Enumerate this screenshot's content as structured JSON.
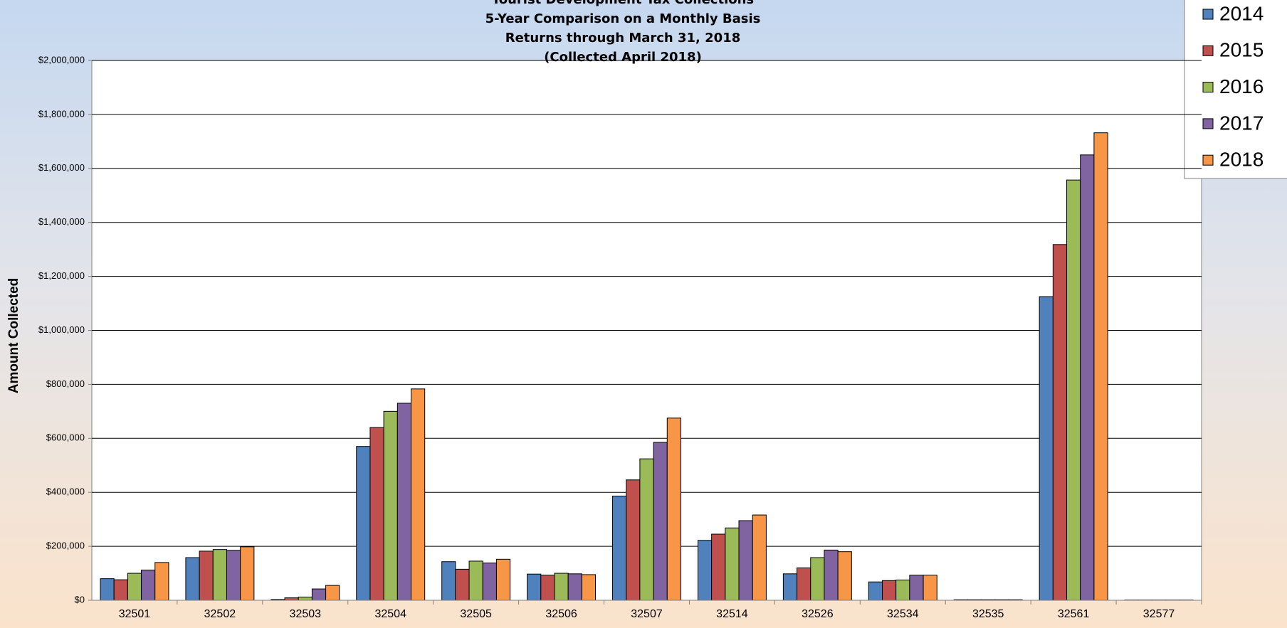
{
  "chart_data": {
    "type": "bar",
    "title": [
      "Tourist Development Tax Collections",
      "5-Year Comparison on a Monthly Basis",
      "Returns through March 31, 2018",
      "(Collected April 2018)"
    ],
    "y_label": "Amount Collected",
    "categories": [
      "32501",
      "32502",
      "32503",
      "32504",
      "32505",
      "32506",
      "32507",
      "32514",
      "32526",
      "32534",
      "32535",
      "32561",
      "32577"
    ],
    "series": [
      {
        "name": "2014",
        "color": "#4f81bd",
        "values": [
          80000,
          158000,
          3000,
          570000,
          143000,
          97000,
          386000,
          222000,
          98000,
          68000,
          2000,
          1125000,
          1000
        ]
      },
      {
        "name": "2015",
        "color": "#c0504d",
        "values": [
          76000,
          182000,
          9000,
          640000,
          115000,
          93000,
          446000,
          245000,
          120000,
          73000,
          2000,
          1318000,
          1000
        ]
      },
      {
        "name": "2016",
        "color": "#9bbb59",
        "values": [
          100000,
          188000,
          12000,
          700000,
          145000,
          100000,
          524000,
          268000,
          158000,
          75000,
          2000,
          1557000,
          1000
        ]
      },
      {
        "name": "2017",
        "color": "#8064a2",
        "values": [
          112000,
          185000,
          42000,
          730000,
          138000,
          98000,
          585000,
          295000,
          186000,
          93000,
          2000,
          1650000,
          1000
        ]
      },
      {
        "name": "2018",
        "color": "#f79646",
        "values": [
          140000,
          198000,
          55000,
          783000,
          152000,
          95000,
          675000,
          316000,
          180000,
          93000,
          2000,
          1732000,
          1000
        ]
      }
    ],
    "ylim": [
      0,
      2000000
    ],
    "yticks": [
      {
        "value": 0,
        "label": "$0"
      },
      {
        "value": 200000,
        "label": "$200,000"
      },
      {
        "value": 400000,
        "label": "$400,000"
      },
      {
        "value": 600000,
        "label": "$600,000"
      },
      {
        "value": 800000,
        "label": "$800,000"
      },
      {
        "value": 1000000,
        "label": "$1,000,000"
      },
      {
        "value": 1200000,
        "label": "$1,200,000"
      },
      {
        "value": 1400000,
        "label": "$1,400,000"
      },
      {
        "value": 1600000,
        "label": "$1,600,000"
      },
      {
        "value": 1800000,
        "label": "$1,800,000"
      },
      {
        "value": 2000000,
        "label": "$2,000,000"
      }
    ],
    "grid": true,
    "legend": "top-right"
  }
}
